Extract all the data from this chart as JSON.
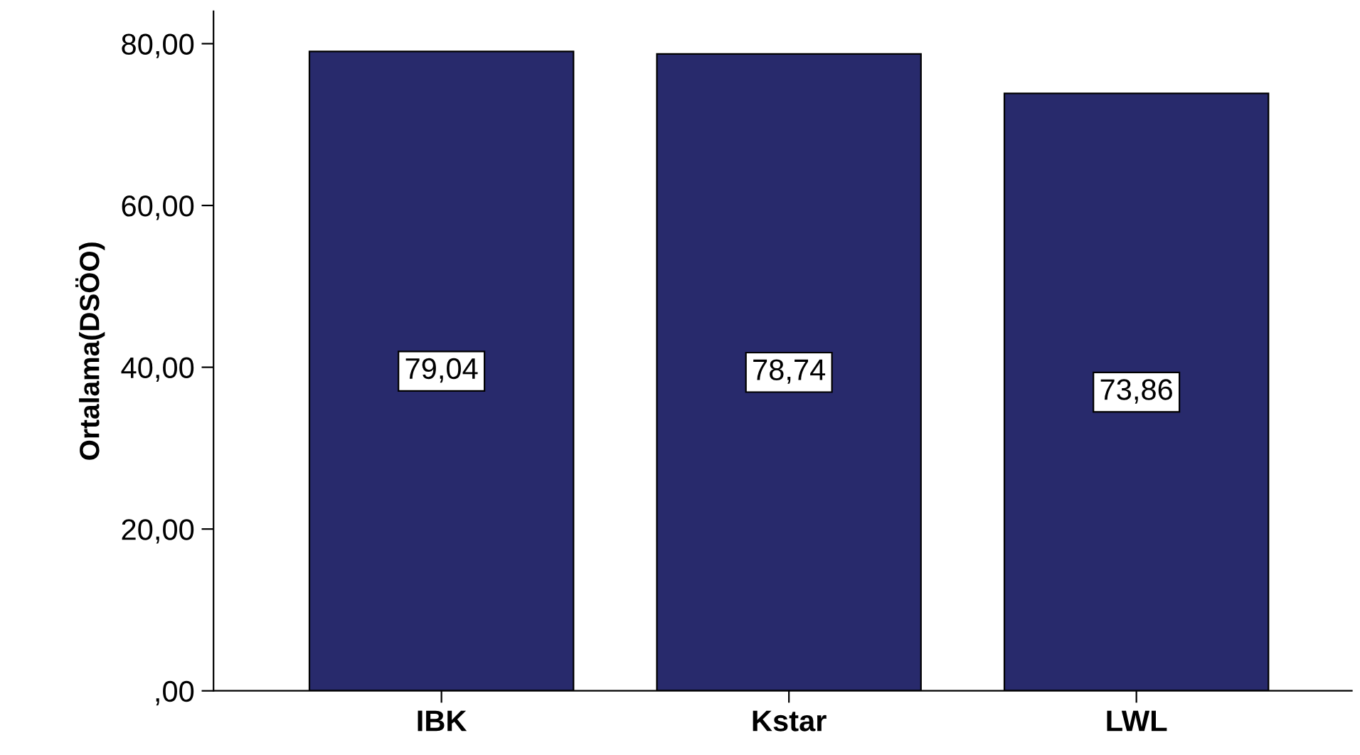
{
  "chart_data": {
    "type": "bar",
    "ylabel": "Ortalama(DSÖO)",
    "categories": [
      "IBK",
      "Kstar",
      "LWL"
    ],
    "values": [
      79.04,
      78.74,
      73.86
    ],
    "value_labels": [
      "79,04",
      "78,74",
      "73,86"
    ],
    "color": "#282a6c",
    "ylim": [
      0,
      84
    ],
    "yticks": [
      {
        "value": 0,
        "label": ",00"
      },
      {
        "value": 20,
        "label": "20,00"
      },
      {
        "value": 40,
        "label": "40,00"
      },
      {
        "value": 60,
        "label": "60,00"
      },
      {
        "value": 80,
        "label": "80,00"
      }
    ],
    "grid": false,
    "legend": false
  }
}
